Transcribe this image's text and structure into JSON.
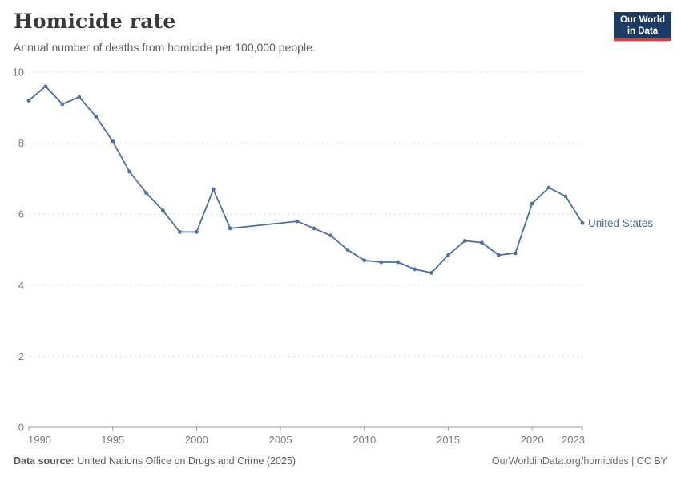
{
  "header": {
    "title": "Homicide rate",
    "subtitle": "Annual number of deaths from homicide per 100,000 people.",
    "logo": {
      "line1": "Our World",
      "line2": "in Data"
    }
  },
  "chart_data": {
    "type": "line",
    "title": "Homicide rate",
    "subtitle": "Annual number of deaths from homicide per 100,000 people.",
    "xlabel": "",
    "ylabel": "",
    "xlim": [
      1990,
      2023
    ],
    "ylim": [
      0,
      10
    ],
    "xticks": [
      1990,
      1995,
      2000,
      2005,
      2010,
      2015,
      2020,
      2023
    ],
    "yticks": [
      0,
      2,
      4,
      6,
      8,
      10
    ],
    "grid": "dashed horizontal",
    "legend_position": "end-of-line label",
    "x": [
      1990,
      1991,
      1992,
      1993,
      1994,
      1995,
      1996,
      1997,
      1998,
      1999,
      2000,
      2001,
      2002,
      2003,
      2004,
      2005,
      2006,
      2007,
      2008,
      2009,
      2010,
      2011,
      2012,
      2013,
      2014,
      2015,
      2016,
      2017,
      2018,
      2019,
      2020,
      2021,
      2022,
      2023
    ],
    "series": [
      {
        "name": "United States",
        "color": "#4c6fa5",
        "values": [
          9.2,
          9.6,
          9.1,
          9.3,
          8.75,
          8.05,
          7.2,
          6.6,
          6.1,
          5.5,
          5.5,
          6.7,
          5.6,
          null,
          null,
          null,
          5.8,
          5.6,
          5.4,
          5.0,
          4.7,
          4.65,
          4.65,
          4.45,
          4.35,
          4.85,
          5.25,
          5.2,
          4.85,
          4.9,
          6.3,
          6.75,
          6.5,
          5.75
        ]
      }
    ],
    "colors": {
      "gridline": "#dcdcdc",
      "axis": "#999999",
      "tick_label": "#7b7b7b"
    }
  },
  "footer": {
    "source_label": "Data source:",
    "source_text": "United Nations Office on Drugs and Crime (2025)",
    "link_text": "OurWorldinData.org/homicides | CC BY"
  }
}
